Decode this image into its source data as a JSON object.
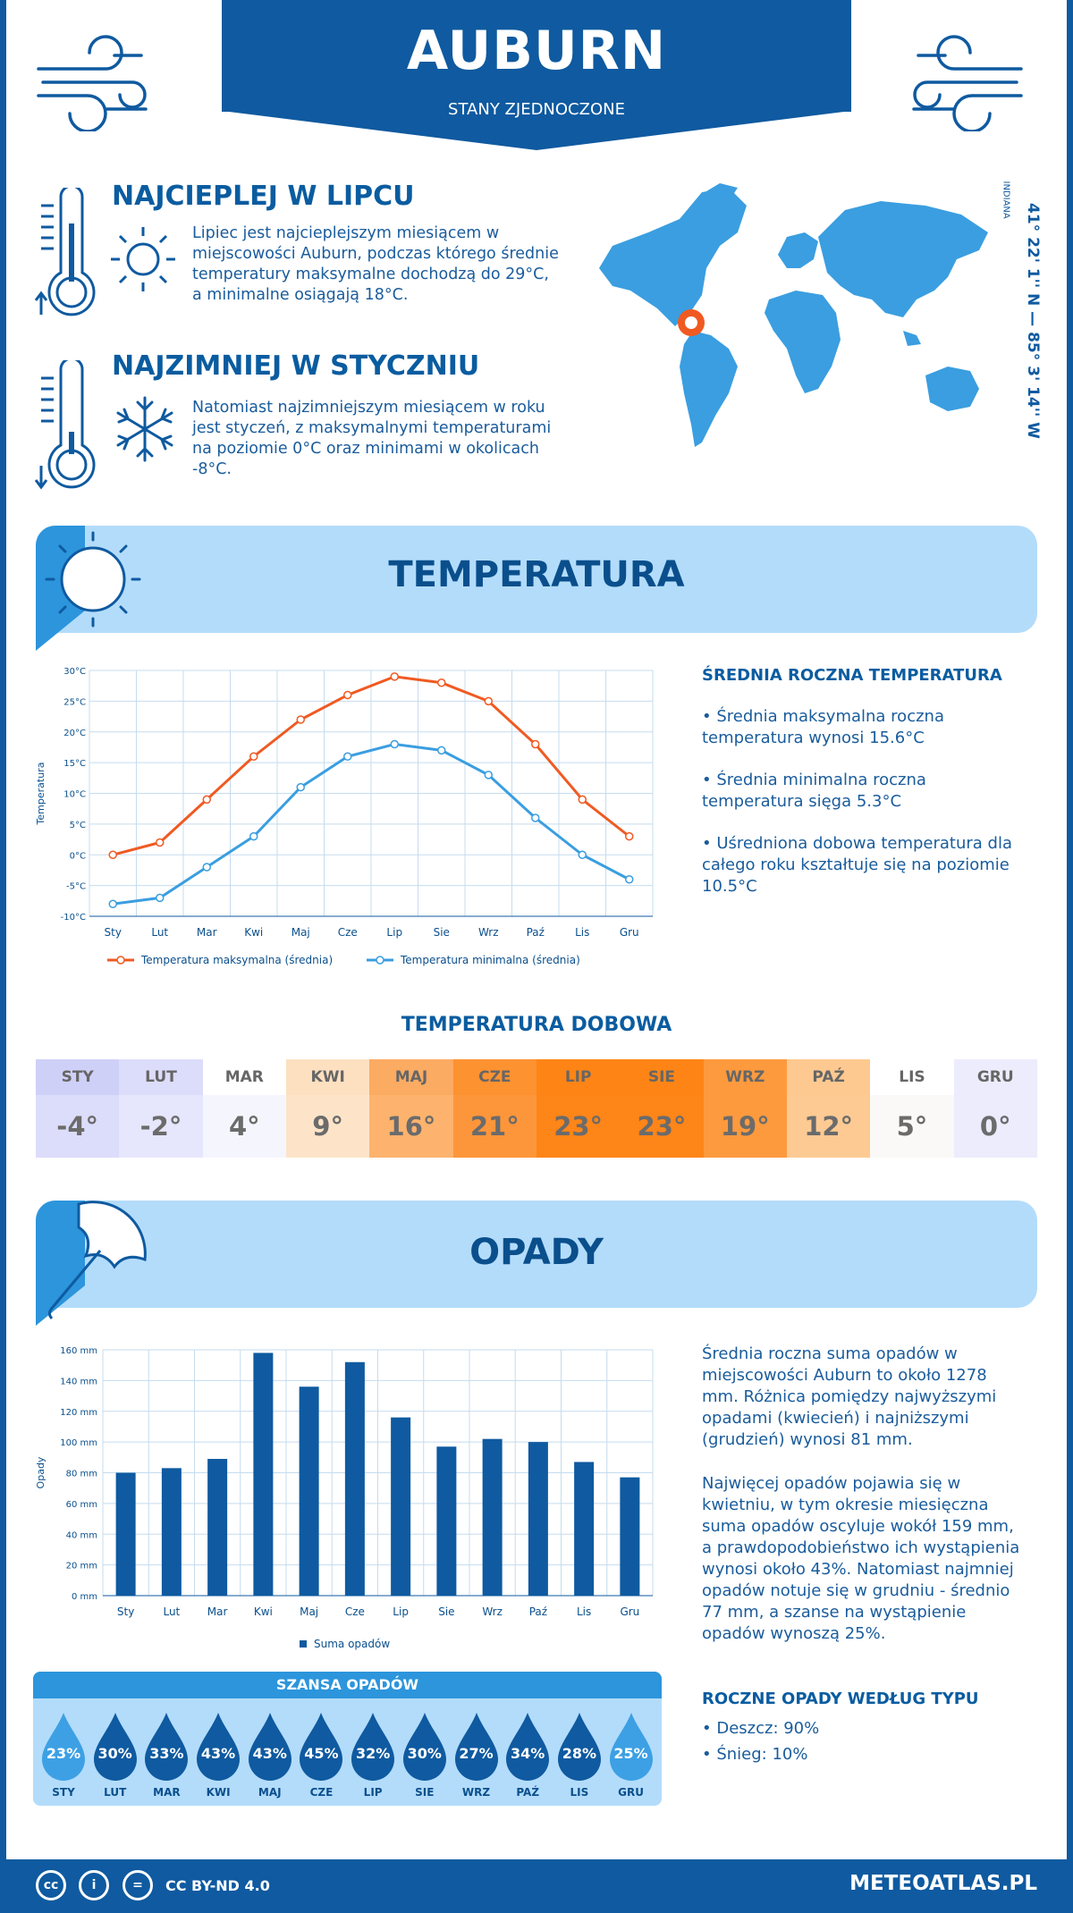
{
  "header": {
    "city": "AUBURN",
    "country": "STANY ZJEDNOCZONE"
  },
  "facts": {
    "hottest": {
      "title": "NAJCIEPLEJ W LIPCU",
      "text": "Lipiec jest najcieplejszym miesiącem w miejscowości Auburn, podczas którego średnie temperatury maksymalne dochodzą do 29°C, a minimalne osiągają 18°C."
    },
    "coldest": {
      "title": "NAJZIMNIEJ W STYCZNIU",
      "text": "Natomiast najzimniejszym miesiącem w roku jest styczeń, z maksymalnymi temperaturami na poziomie 0°C oraz minimami w okolicach -8°C."
    }
  },
  "location": {
    "coords": "41° 22' 1'' N — 85° 3' 14'' W",
    "region": "INDIANA"
  },
  "temperature": {
    "banner": "TEMPERATURA",
    "side_title": "ŚREDNIA ROCZNA TEMPERATURA",
    "bullets": [
      "• Średnia maksymalna roczna temperatura wynosi 15.6°C",
      "• Średnia minimalna roczna temperatura sięga 5.3°C",
      "• Uśredniona dobowa temperatura dla całego roku kształtuje się na poziomie 10.5°C"
    ]
  },
  "daily": {
    "title": "TEMPERATURA DOBOWA",
    "cells": [
      {
        "month": "STY",
        "value": "-4°",
        "head": "#cfd0f7",
        "body": "#dcdcfb"
      },
      {
        "month": "LUT",
        "value": "-2°",
        "head": "#dcdcfb",
        "body": "#e6e6fc"
      },
      {
        "month": "MAR",
        "value": "4°",
        "head": "#ffffff",
        "body": "#f5f5fe"
      },
      {
        "month": "KWI",
        "value": "9°",
        "head": "#fde0c0",
        "body": "#fde4c8"
      },
      {
        "month": "MAJ",
        "value": "16°",
        "head": "#fcab62",
        "body": "#fdb36d"
      },
      {
        "month": "CZE",
        "value": "21°",
        "head": "#fd9230",
        "body": "#fd963a"
      },
      {
        "month": "LIP",
        "value": "23°",
        "head": "#fe8515",
        "body": "#fe8518"
      },
      {
        "month": "SIE",
        "value": "23°",
        "head": "#fe8515",
        "body": "#fe8518"
      },
      {
        "month": "WRZ",
        "value": "19°",
        "head": "#fd9a3e",
        "body": "#fd9a3e"
      },
      {
        "month": "PAŹ",
        "value": "12°",
        "head": "#fdc990",
        "body": "#fdca93"
      },
      {
        "month": "LIS",
        "value": "5°",
        "head": "#ffffff",
        "body": "#fbf9f7"
      },
      {
        "month": "GRU",
        "value": "0°",
        "head": "#ececfd",
        "body": "#ececfd"
      }
    ]
  },
  "precip": {
    "banner": "OPADY",
    "paragraph1": "Średnia roczna suma opadów w miejscowości Auburn to około 1278 mm. Różnica pomiędzy najwyższymi opadami (kwiecień) i najniższymi (grudzień) wynosi 81 mm.",
    "paragraph2": "Najwięcej opadów pojawia się w kwietniu, w tym okresie miesięczna suma opadów oscyluje wokół 159 mm, a prawdopodobieństwo ich wystąpienia wynosi około 43%. Natomiast najmniej opadów notuje się w grudniu - średnio 77 mm, a szanse na wystąpienie opadów wynoszą 25%.",
    "type_title": "ROCZNE OPADY WEDŁUG TYPU",
    "type_items": [
      "• Deszcz: 90%",
      "• Śnieg: 10%"
    ],
    "chance_title": "SZANSA OPADÓW",
    "chance": [
      {
        "month": "STY",
        "value": "23%",
        "color": "#3da0e4"
      },
      {
        "month": "LUT",
        "value": "30%",
        "color": "#0f5aa0"
      },
      {
        "month": "MAR",
        "value": "33%",
        "color": "#0f5aa0"
      },
      {
        "month": "KWI",
        "value": "43%",
        "color": "#0f5aa0"
      },
      {
        "month": "MAJ",
        "value": "43%",
        "color": "#0f5aa0"
      },
      {
        "month": "CZE",
        "value": "45%",
        "color": "#0f5aa0"
      },
      {
        "month": "LIP",
        "value": "32%",
        "color": "#0f5aa0"
      },
      {
        "month": "SIE",
        "value": "30%",
        "color": "#0f5aa0"
      },
      {
        "month": "WRZ",
        "value": "27%",
        "color": "#0f5aa0"
      },
      {
        "month": "PAŹ",
        "value": "34%",
        "color": "#0f5aa0"
      },
      {
        "month": "LIS",
        "value": "28%",
        "color": "#0f5aa0"
      },
      {
        "month": "GRU",
        "value": "25%",
        "color": "#3da0e4"
      }
    ]
  },
  "footer": {
    "license": "CC BY-ND 4.0",
    "site": "METEOATLAS.PL"
  },
  "chart_data": [
    {
      "type": "line",
      "categories": [
        "Sty",
        "Lut",
        "Mar",
        "Kwi",
        "Maj",
        "Cze",
        "Lip",
        "Sie",
        "Wrz",
        "Paź",
        "Lis",
        "Gru"
      ],
      "series": [
        {
          "name": "Temperatura maksymalna (średnia)",
          "values": [
            0,
            2,
            9,
            16,
            22,
            26,
            29,
            28,
            25,
            18,
            9,
            3
          ],
          "color": "#f05a22"
        },
        {
          "name": "Temperatura minimalna (średnia)",
          "values": [
            -8,
            -7,
            -2,
            3,
            11,
            16,
            18,
            17,
            13,
            6,
            0,
            -4
          ],
          "color": "#3a9ee0"
        }
      ],
      "ylabel": "Temperatura",
      "ylim": [
        -10,
        30
      ],
      "yticks": [
        "-10°C",
        "-5°C",
        "0°C",
        "5°C",
        "10°C",
        "15°C",
        "20°C",
        "25°C",
        "30°C"
      ],
      "grid": true,
      "legend": "bottom"
    },
    {
      "type": "bar",
      "categories": [
        "Sty",
        "Lut",
        "Mar",
        "Kwi",
        "Maj",
        "Cze",
        "Lip",
        "Sie",
        "Wrz",
        "Paź",
        "Lis",
        "Gru"
      ],
      "series": [
        {
          "name": "Suma opadów",
          "values": [
            80,
            83,
            89,
            158,
            136,
            152,
            116,
            97,
            102,
            100,
            87,
            77
          ],
          "color": "#0f5aa0"
        }
      ],
      "ylabel": "Opady",
      "ylim": [
        0,
        160
      ],
      "yticks": [
        "0 mm",
        "20 mm",
        "40 mm",
        "60 mm",
        "80 mm",
        "100 mm",
        "120 mm",
        "140 mm",
        "160 mm"
      ],
      "grid": true,
      "legend": "bottom"
    }
  ]
}
